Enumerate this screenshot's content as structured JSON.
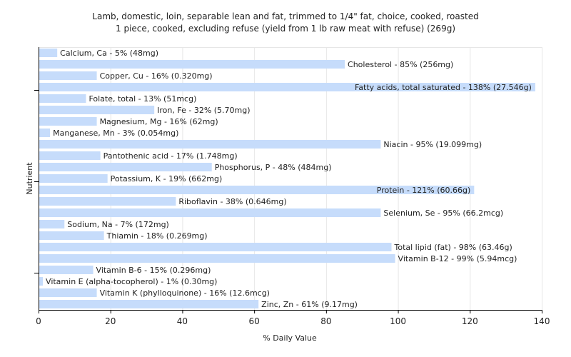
{
  "chart_data": {
    "type": "bar",
    "orientation": "horizontal",
    "title": "Lamb, domestic, loin, separable lean and fat, trimmed to 1/4\" fat, choice, cooked, roasted",
    "subtitle": "1 piece, cooked, excluding refuse (yield from 1 lb raw meat with refuse) (269g)",
    "xlabel": "% Daily Value",
    "ylabel": "Nutrient",
    "xlim": [
      0,
      140
    ],
    "xticks": [
      0,
      20,
      40,
      60,
      80,
      100,
      120,
      140
    ],
    "grid": true,
    "bar_color": "#c6dcfb",
    "bars": [
      {
        "value": 5,
        "label": "Calcium, Ca - 5% (48mg)"
      },
      {
        "value": 85,
        "label": "Cholesterol - 85% (256mg)"
      },
      {
        "value": 16,
        "label": "Copper, Cu - 16% (0.320mg)"
      },
      {
        "value": 138,
        "label": "Fatty acids, total saturated - 138% (27.546g)"
      },
      {
        "value": 13,
        "label": "Folate, total - 13% (51mcg)"
      },
      {
        "value": 32,
        "label": "Iron, Fe - 32% (5.70mg)"
      },
      {
        "value": 16,
        "label": "Magnesium, Mg - 16% (62mg)"
      },
      {
        "value": 3,
        "label": "Manganese, Mn - 3% (0.054mg)"
      },
      {
        "value": 95,
        "label": "Niacin - 95% (19.099mg)"
      },
      {
        "value": 17,
        "label": "Pantothenic acid - 17% (1.748mg)"
      },
      {
        "value": 48,
        "label": "Phosphorus, P - 48% (484mg)"
      },
      {
        "value": 19,
        "label": "Potassium, K - 19% (662mg)"
      },
      {
        "value": 121,
        "label": "Protein - 121% (60.66g)"
      },
      {
        "value": 38,
        "label": "Riboflavin - 38% (0.646mg)"
      },
      {
        "value": 95,
        "label": "Selenium, Se - 95% (66.2mcg)"
      },
      {
        "value": 7,
        "label": "Sodium, Na - 7% (172mg)"
      },
      {
        "value": 18,
        "label": "Thiamin - 18% (0.269mg)"
      },
      {
        "value": 98,
        "label": "Total lipid (fat) - 98% (63.46g)"
      },
      {
        "value": 99,
        "label": "Vitamin B-12 - 99% (5.94mcg)"
      },
      {
        "value": 15,
        "label": "Vitamin B-6 - 15% (0.296mg)"
      },
      {
        "value": 1,
        "label": "Vitamin E (alpha-tocopherol) - 1% (0.30mg)"
      },
      {
        "value": 16,
        "label": "Vitamin K (phylloquinone) - 16% (12.6mcg)"
      },
      {
        "value": 61,
        "label": "Zinc, Zn - 61% (9.17mg)"
      }
    ]
  }
}
